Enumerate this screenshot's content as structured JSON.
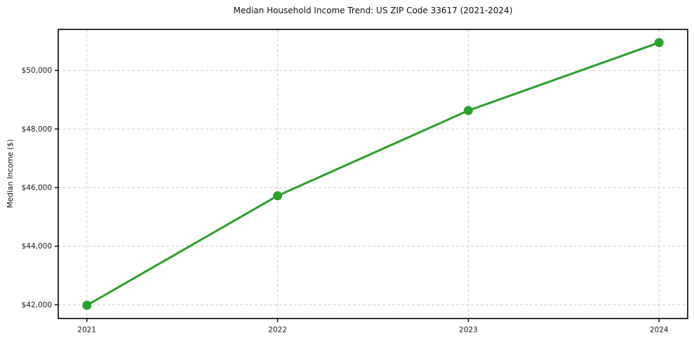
{
  "chart_data": {
    "type": "line",
    "title": "Median Household Income Trend: US ZIP Code 33617 (2021-2024)",
    "xlabel": "",
    "ylabel": "Median Income ($)",
    "x": [
      2021,
      2022,
      2023,
      2024
    ],
    "x_tick_labels": [
      "2021",
      "2022",
      "2023",
      "2024"
    ],
    "values": [
      41980,
      45720,
      48630,
      50950
    ],
    "y_ticks": [
      42000,
      44000,
      46000,
      48000,
      50000
    ],
    "y_tick_labels": [
      "$42,000",
      "$44,000",
      "$46,000",
      "$48,000",
      "$50,000"
    ],
    "xlim": [
      2020.85,
      2024.15
    ],
    "ylim": [
      41530,
      51400
    ],
    "grid": true,
    "legend": "none",
    "style": {
      "line_color": "#2ca02c",
      "marker_color": "#2ca02c",
      "grid_color": "#cdcdcd",
      "spine_color": "#000000",
      "text_color": "#1a1a1a",
      "background": "#ffffff"
    }
  }
}
